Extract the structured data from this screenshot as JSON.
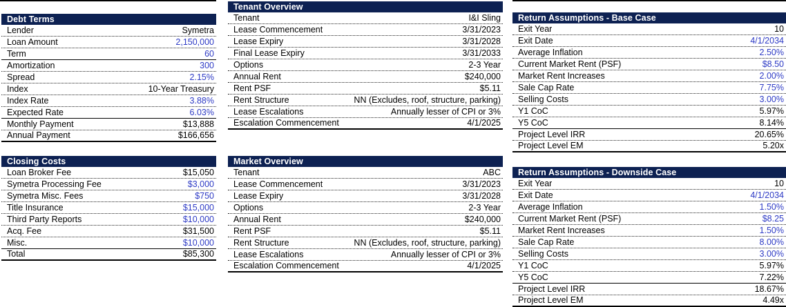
{
  "colors": {
    "header_bg": "#0d2152",
    "header_text": "#ffffff",
    "input_blue": "#2d3ac5",
    "text_black": "#000000"
  },
  "tables": {
    "debt_terms": {
      "title": "Debt Terms",
      "rows": [
        {
          "label": "Lender",
          "value": "Symetra",
          "input": false,
          "border": "dotted"
        },
        {
          "label": "Loan Amount",
          "value": "2,150,000",
          "input": true,
          "border": "dotted"
        },
        {
          "label": "Term",
          "value": "60",
          "input": true,
          "border": "solid"
        },
        {
          "label": "Amortization",
          "value": "300",
          "input": true,
          "border": "dotted"
        },
        {
          "label": "Spread",
          "value": "2.15%",
          "input": true,
          "border": "dotted"
        },
        {
          "label": "Index",
          "value": "10-Year Treasury",
          "input": false,
          "border": "dotted"
        },
        {
          "label": "Index Rate",
          "value": "3.88%",
          "input": true,
          "border": "dotted"
        },
        {
          "label": "Expected Rate",
          "value": "6.03%",
          "input": true,
          "border": "solid"
        },
        {
          "label": "Monthly Payment",
          "value": "$13,888",
          "input": false,
          "border": "dotted"
        },
        {
          "label": "Annual Payment",
          "value": "$166,656",
          "input": false,
          "border": "end"
        }
      ]
    },
    "closing_costs": {
      "title": "Closing Costs",
      "rows": [
        {
          "label": "Loan Broker Fee",
          "value": "$15,050",
          "input": false,
          "border": "dotted"
        },
        {
          "label": "Symetra Processing Fee",
          "value": "$3,000",
          "input": true,
          "border": "dotted"
        },
        {
          "label": "Symetra Misc. Fees",
          "value": "$750",
          "input": true,
          "border": "dotted"
        },
        {
          "label": "Title Insurance",
          "value": "$15,000",
          "input": true,
          "border": "dotted"
        },
        {
          "label": "Third Party Reports",
          "value": "$10,000",
          "input": true,
          "border": "dotted"
        },
        {
          "label": "Acq. Fee",
          "value": "$31,500",
          "input": false,
          "border": "dotted"
        },
        {
          "label": "Misc.",
          "value": "$10,000",
          "input": true,
          "border": "solid"
        },
        {
          "label": "Total",
          "value": "$85,300",
          "input": false,
          "border": "end"
        }
      ]
    },
    "tenant_overview": {
      "title": "Tenant Overview",
      "rows": [
        {
          "label": "Tenant",
          "value": "I&I Sling",
          "input": false,
          "border": "dotted"
        },
        {
          "label": "Lease Commencement",
          "value": "3/31/2023",
          "input": false,
          "border": "dotted"
        },
        {
          "label": "Lease Expiry",
          "value": "3/31/2028",
          "input": false,
          "border": "dotted"
        },
        {
          "label": "Final Lease Expiry",
          "value": "3/31/2033",
          "input": false,
          "border": "dotted"
        },
        {
          "label": "Options",
          "value": "2-3 Year",
          "input": false,
          "border": "dotted"
        },
        {
          "label": "Annual Rent",
          "value": "$240,000",
          "input": false,
          "border": "dotted"
        },
        {
          "label": "Rent PSF",
          "value": "$5.11",
          "input": false,
          "border": "dotted"
        },
        {
          "label": "Rent Structure",
          "value": "NN (Excludes, roof, structure, parking)",
          "input": false,
          "border": "dotted"
        },
        {
          "label": "Lease Escalations",
          "value": "Annually lesser of CPI or 3%",
          "input": false,
          "border": "dotted"
        },
        {
          "label": "Escalation Commencement",
          "value": "4/1/2025",
          "input": false,
          "border": "end"
        }
      ]
    },
    "market_overview": {
      "title": "Market Overview",
      "rows": [
        {
          "label": "Tenant",
          "value": "ABC",
          "input": false,
          "border": "dotted"
        },
        {
          "label": "Lease Commencement",
          "value": "3/31/2023",
          "input": false,
          "border": "dotted"
        },
        {
          "label": "Lease Expiry",
          "value": "3/31/2028",
          "input": false,
          "border": "dotted"
        },
        {
          "label": "Options",
          "value": "2-3 Year",
          "input": false,
          "border": "dotted"
        },
        {
          "label": "Annual Rent",
          "value": "$240,000",
          "input": false,
          "border": "dotted"
        },
        {
          "label": "Rent PSF",
          "value": "$5.11",
          "input": false,
          "border": "dotted"
        },
        {
          "label": "Rent Structure",
          "value": "NN (Excludes, roof, structure, parking)",
          "input": false,
          "border": "dotted"
        },
        {
          "label": "Lease Escalations",
          "value": "Annually lesser of CPI or 3%",
          "input": false,
          "border": "dotted"
        },
        {
          "label": "Escalation Commencement",
          "value": "4/1/2025",
          "input": false,
          "border": "end"
        }
      ]
    },
    "base_case": {
      "title": "Return Assumptions - Base Case",
      "rows": [
        {
          "label": "Exit Year",
          "value": "10",
          "input": false,
          "border": "dotted"
        },
        {
          "label": "Exit Date",
          "value": "4/1/2034",
          "input": true,
          "border": "dotted"
        },
        {
          "label": "Average Inflation",
          "value": "2.50%",
          "input": true,
          "border": "dotted"
        },
        {
          "label": "Current Market Rent (PSF)",
          "value": "$8.50",
          "input": true,
          "border": "dotted"
        },
        {
          "label": "Market Rent Increases",
          "value": "2.00%",
          "input": true,
          "border": "dotted"
        },
        {
          "label": "Sale Cap Rate",
          "value": "7.75%",
          "input": true,
          "border": "dotted"
        },
        {
          "label": "Selling Costs",
          "value": "3.00%",
          "input": true,
          "border": "dotted"
        },
        {
          "label": "Y1 CoC",
          "value": "5.97%",
          "input": false,
          "border": "dotted"
        },
        {
          "label": "Y5 CoC",
          "value": "8.14%",
          "input": false,
          "border": "solid"
        },
        {
          "label": "Project Level IRR",
          "value": "20.65%",
          "input": false,
          "border": "dotted"
        },
        {
          "label": "Project Level EM",
          "value": "5.20x",
          "input": false,
          "border": "end"
        }
      ]
    },
    "downside_case": {
      "title": "Return Assumptions - Downside Case",
      "rows": [
        {
          "label": "Exit Year",
          "value": "10",
          "input": false,
          "border": "dotted"
        },
        {
          "label": "Exit Date",
          "value": "4/1/2034",
          "input": true,
          "border": "dotted"
        },
        {
          "label": "Average Inflation",
          "value": "1.50%",
          "input": true,
          "border": "dotted"
        },
        {
          "label": "Current Market Rent (PSF)",
          "value": "$8.25",
          "input": true,
          "border": "dotted"
        },
        {
          "label": "Market Rent Increases",
          "value": "1.50%",
          "input": true,
          "border": "dotted"
        },
        {
          "label": "Sale Cap Rate",
          "value": "8.00%",
          "input": true,
          "border": "dotted"
        },
        {
          "label": "Selling Costs",
          "value": "3.00%",
          "input": true,
          "border": "dotted"
        },
        {
          "label": "Y1 CoC",
          "value": "5.97%",
          "input": false,
          "border": "dotted"
        },
        {
          "label": "Y5 CoC",
          "value": "7.22%",
          "input": false,
          "border": "solid"
        },
        {
          "label": "Project Level IRR",
          "value": "18.67%",
          "input": false,
          "border": "dotted"
        },
        {
          "label": "Project Level EM",
          "value": "4.49x",
          "input": false,
          "border": "end"
        }
      ]
    }
  }
}
